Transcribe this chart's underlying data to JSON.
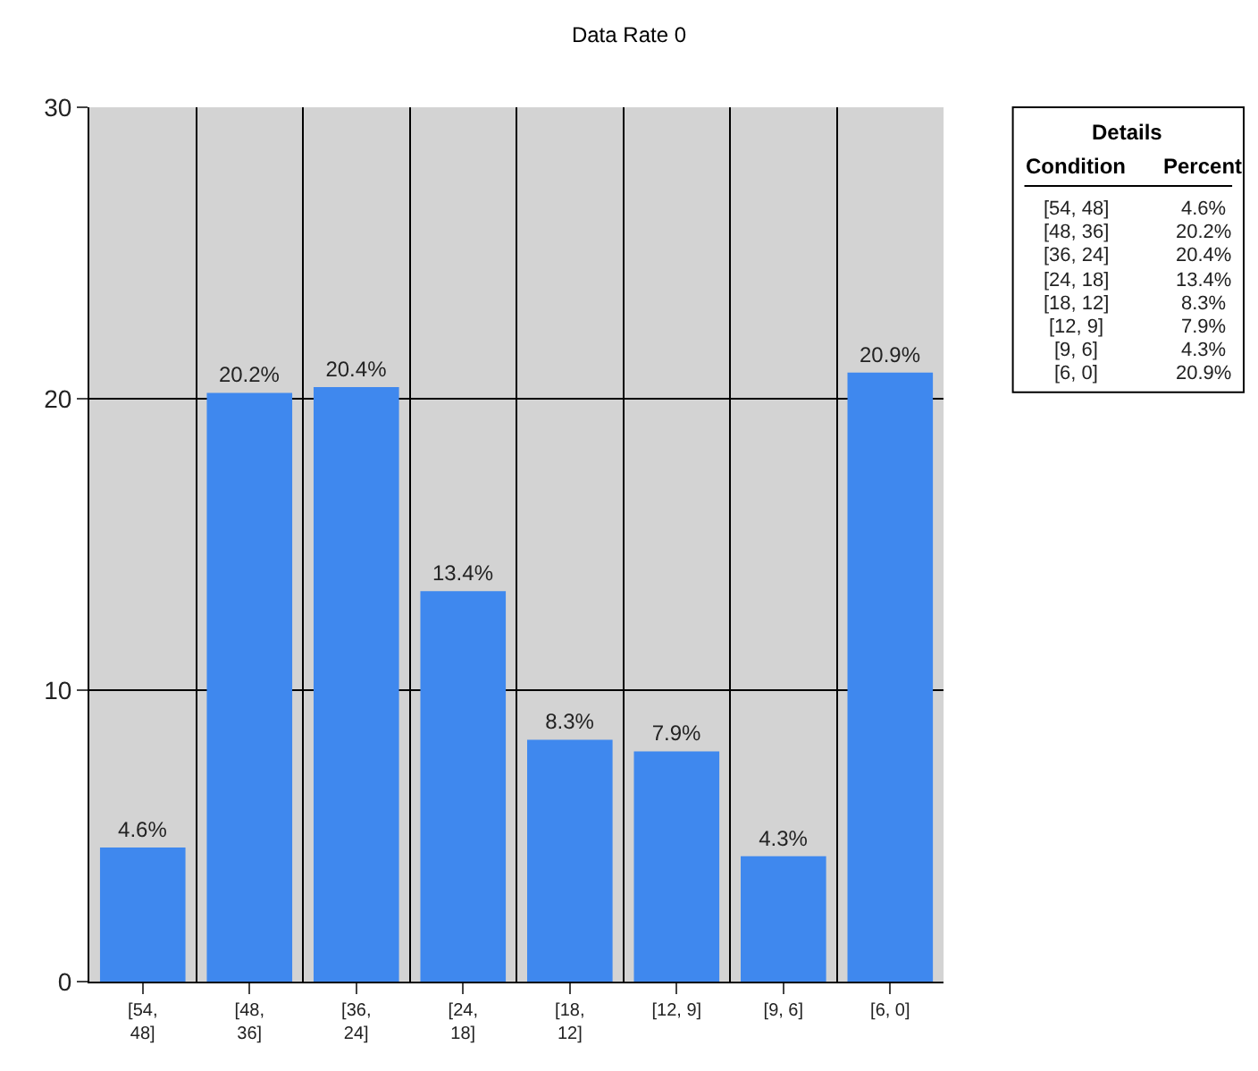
{
  "chart_data": {
    "type": "bar",
    "title": "Data Rate 0",
    "categories": [
      "[54, 48]",
      "[48, 36]",
      "[36, 24]",
      "[24, 18]",
      "[18, 12]",
      "[12, 9]",
      "[9, 6]",
      "[6, 0]"
    ],
    "values": [
      4.6,
      20.2,
      20.4,
      13.4,
      8.3,
      7.9,
      4.3,
      20.9
    ],
    "value_labels": [
      "4.6%",
      "20.2%",
      "20.4%",
      "13.4%",
      "8.3%",
      "7.9%",
      "4.3%",
      "20.9%"
    ],
    "color": "#3f88ee",
    "ylim": [
      0,
      30
    ],
    "yticks": [
      0,
      10,
      20,
      30
    ],
    "grid": true,
    "annotations": [
      "Details",
      "Condition",
      "Percent"
    ]
  }
}
